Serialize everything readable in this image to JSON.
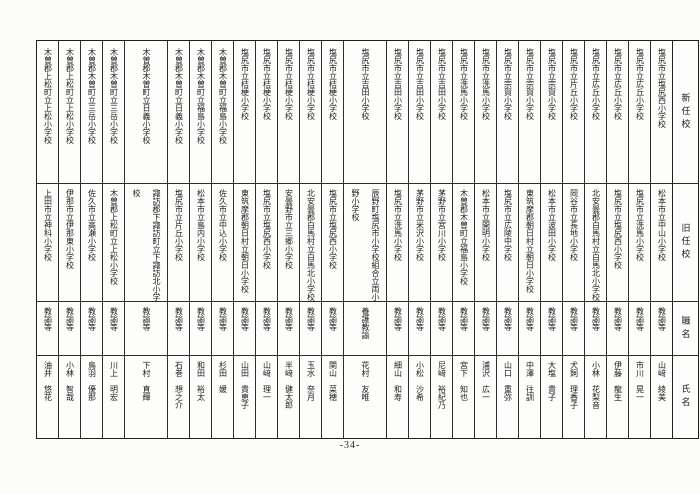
{
  "page": {
    "number": "-34-"
  },
  "table": {
    "column_headers": {
      "new_school": "新任校",
      "old_school": "旧任校",
      "job_title": "職名",
      "name": "氏名"
    },
    "entries": [
      {
        "new_school": "塩尻市立塩尻西小学校",
        "old_school": "松本市立中山小学校",
        "job_title": "教諭等",
        "name": "山﨑　綾美"
      },
      {
        "new_school": "塩尻市立広丘小学校",
        "old_school": "塩尻市立洗馬小学校",
        "job_title": "教諭等",
        "name": "市川　晃一"
      },
      {
        "new_school": "塩尻市立広丘小学校",
        "old_school": "塩尻市立塩尻西小学校",
        "job_title": "教諭等",
        "name": "伊藤　龍生"
      },
      {
        "new_school": "塩尻市立広丘小学校",
        "old_school": "北安曇郡白馬村立白馬北小学校",
        "job_title": "教諭等",
        "name": "小林　花梨音"
      },
      {
        "new_school": "塩尻市立片丘小学校",
        "old_school": "岡谷市立長地小学校",
        "job_title": "教諭等",
        "name": "犬飼　理香子"
      },
      {
        "new_school": "塩尻市立宗賀小学校",
        "old_school": "松本市立波田小学校",
        "job_title": "教諭等",
        "name": "大塩　貴子"
      },
      {
        "new_school": "塩尻市立宗賀小学校",
        "old_school": "東筑摩郡朝日村立朝日小学校",
        "job_title": "教諭等",
        "name": "中澤　往訓"
      },
      {
        "new_school": "塩尻市立宗賀小学校",
        "old_school": "塩尻市立広陵中学校",
        "job_title": "教諭等",
        "name": "山口　重弥"
      },
      {
        "new_school": "塩尻市立洗馬小学校",
        "old_school": "松本市立開明小学校",
        "job_title": "教諭等",
        "name": "浦沢　広一"
      },
      {
        "new_school": "塩尻市立洗馬小学校",
        "old_school": "木曽郡木曽町立福島小学校",
        "job_title": "教諭等",
        "name": "宮下　知也"
      },
      {
        "new_school": "塩尻市立吉田小学校",
        "old_school": "茅野市立宮川小学校",
        "job_title": "教諭等",
        "name": "尼﨑　裕紀乃"
      },
      {
        "new_school": "塩尻市立吉田小学校",
        "old_school": "茅野市立米沢小学校",
        "job_title": "教諭等",
        "name": "小松　沙希"
      },
      {
        "new_school": "塩尻市立吉田小学校",
        "old_school": "塩尻市立洗馬小学校",
        "job_title": "教諭等",
        "name": "細山　和寿"
      },
      {
        "new_school": "塩尻市立吉田小学校",
        "old_school": "辰野町塩尻市小学校組合立両小野小学校",
        "job_title": "養護教諭",
        "name": "花村　友唯"
      },
      {
        "new_school": "塩尻市立桔梗小学校",
        "old_school": "塩尻市立塩尻西小学校",
        "job_title": "教諭等",
        "name": "関山　菜穂"
      },
      {
        "new_school": "塩尻市立桔梗小学校",
        "old_school": "北安曇郡白馬村立白馬北小学校",
        "job_title": "教諭等",
        "name": "玉水　奈月"
      },
      {
        "new_school": "塩尻市立桔梗小学校",
        "old_school": "安曇野市立三郷小学校",
        "job_title": "教諭等",
        "name": "半﨑　健太郎"
      },
      {
        "new_school": "塩尻市立桔梗小学校",
        "old_school": "塩尻市立塩尻西小学校",
        "job_title": "教諭等",
        "name": "山﨑　理一"
      },
      {
        "new_school": "塩尻市立桔梗小学校",
        "old_school": "東筑摩郡朝日村立朝日小学校",
        "job_title": "教諭等",
        "name": "山田　貴恵子"
      },
      {
        "new_school": "木曽郡木曽町立福島小学校",
        "old_school": "佐久市立中込小学校",
        "job_title": "教諭等",
        "name": "杉田　媛"
      },
      {
        "new_school": "木曽郡木曽町立福島小学校",
        "old_school": "松本市立島内小学校",
        "job_title": "教諭等",
        "name": "和田　裕太"
      },
      {
        "new_school": "木曽郡木曽町立日義小学校",
        "old_school": "塩尻市立片丘小学校",
        "job_title": "教諭等",
        "name": "石巻　想之介"
      },
      {
        "new_school": "木曽郡木曽町立日義小学校",
        "old_school": "諏訪郡下諏訪町立下諏訪北小学校",
        "job_title": "教諭等",
        "name": "下村　直輝"
      },
      {
        "new_school": "木曽郡木曽町立三岳小学校",
        "old_school": "木曽郡上松町立上松小学校",
        "job_title": "教諭等",
        "name": "川上　明宏"
      },
      {
        "new_school": "木曽郡木曽町立三岳小学校",
        "old_school": "佐久市立高瀬小学校",
        "job_title": "教諭等",
        "name": "鳥羽　優那"
      },
      {
        "new_school": "木曽郡上松町立上松小学校",
        "old_school": "伊那市立伊那東小学校",
        "job_title": "教諭等",
        "name": "小林　智哉"
      },
      {
        "new_school": "木曽郡上松町立上松小学校",
        "old_school": "上田市立神科小学校",
        "job_title": "教諭等",
        "name": "油井　悠花"
      }
    ]
  }
}
